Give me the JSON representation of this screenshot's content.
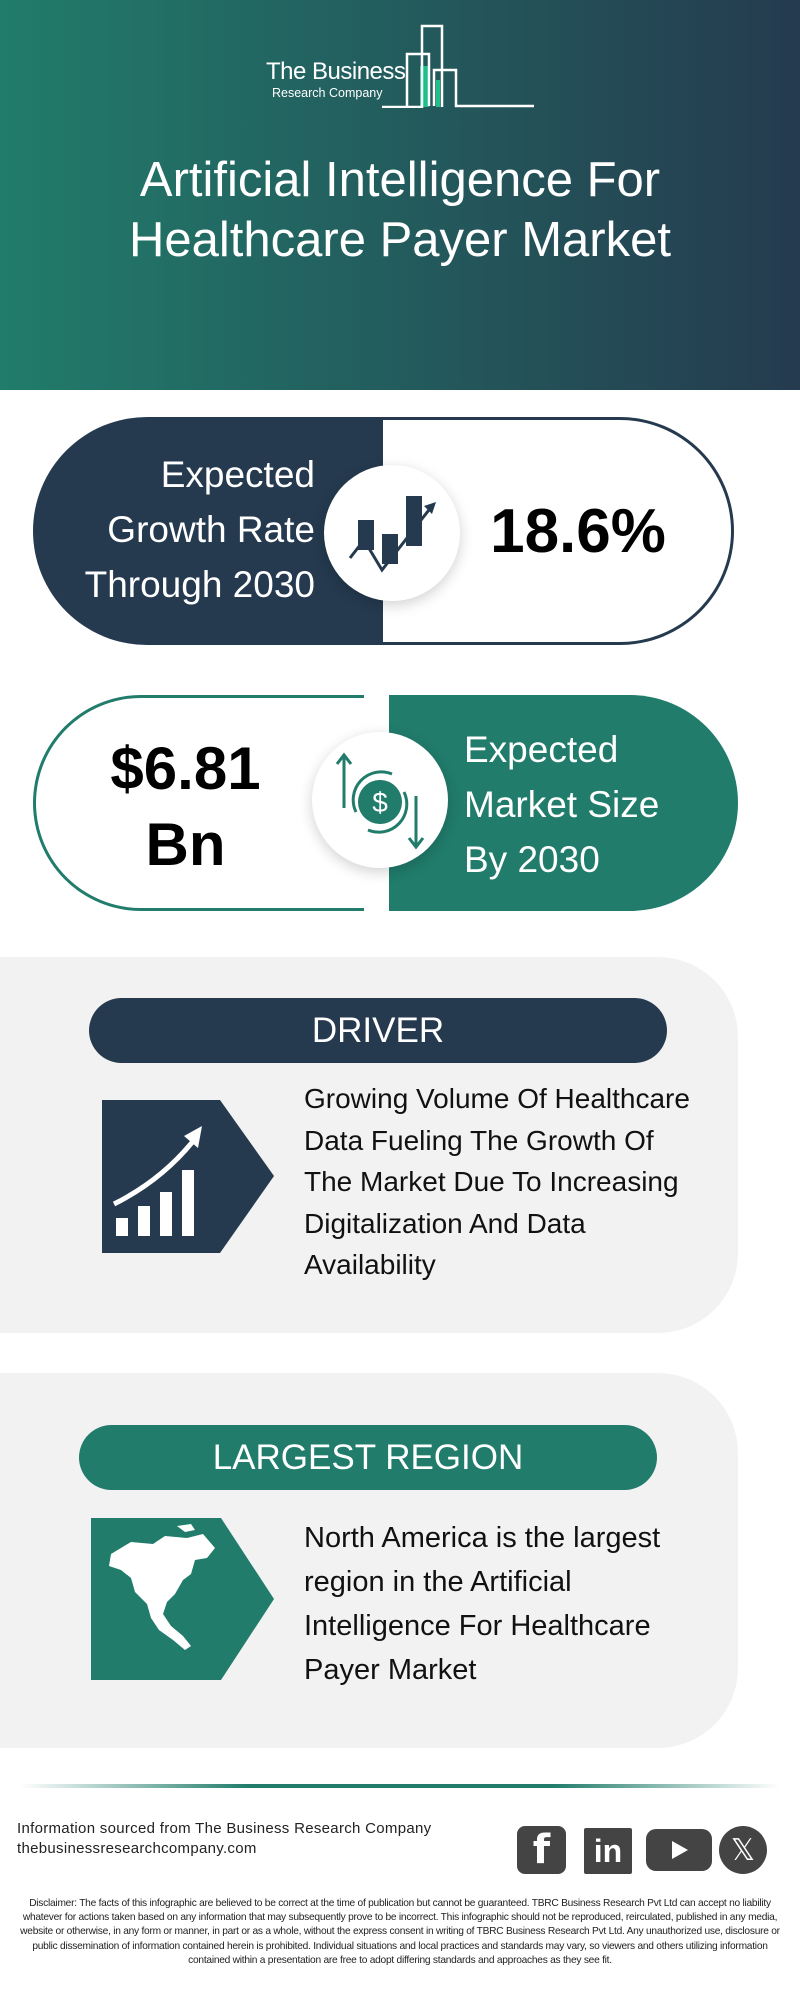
{
  "colors": {
    "navy": "#253a4f",
    "teal": "#217c6b",
    "card_bg": "#f2f2f2",
    "social": "#444444"
  },
  "logo": {
    "line1": "The Business",
    "line2": "Research Company"
  },
  "header": {
    "title_lines": [
      "Artificial Intelligence For",
      "Healthcare Payer Market"
    ]
  },
  "growth": {
    "label_lines": [
      "Expected",
      "Growth Rate",
      "Through 2030"
    ],
    "value": "18.6%",
    "icon": "growth-chart-icon"
  },
  "market_size": {
    "value_lines": [
      "$6.81",
      "Bn"
    ],
    "label_lines": [
      "Expected",
      "Market Size",
      "By 2030"
    ],
    "icon": "dollar-cycle-icon"
  },
  "driver": {
    "heading": "DRIVER",
    "text_lines": [
      "Growing Volume Of Healthcare",
      "Data Fueling The Growth Of",
      "The Market Due To Increasing",
      "Digitalization And Data",
      "Availability"
    ],
    "icon": "rising-bars-icon"
  },
  "region": {
    "heading": "LARGEST REGION",
    "text_lines": [
      "North America is the largest",
      "region in the Artificial",
      "Intelligence For Healthcare",
      "Payer Market"
    ],
    "icon": "north-america-map-icon"
  },
  "footer": {
    "source": "Information sourced from The Business Research Company",
    "website": "thebusinessresearchcompany.com",
    "social": [
      "facebook",
      "linkedin",
      "youtube",
      "x"
    ]
  },
  "disclaimer": "Disclaimer: The facts of this infographic are believed to be correct at the time of publication but cannot be guaranteed. TBRC Business Research Pvt Ltd can accept no liability whatever for actions taken based on any information that may subsequently prove to be incorrect. This infographic should not be reproduced, reirculated, published in any media, website or otherwise, in any form or manner, in part or as a whole, without the express consent in writing of TBRC Business Research Pvt Ltd. Any unauthorized use, disclosure or public dissemination of information contained herein is prohibited. Individual situations and local practices and standards may vary, so viewers and others utilizing information contained within a presentation are free to adopt differing standards and approaches as they see fit."
}
